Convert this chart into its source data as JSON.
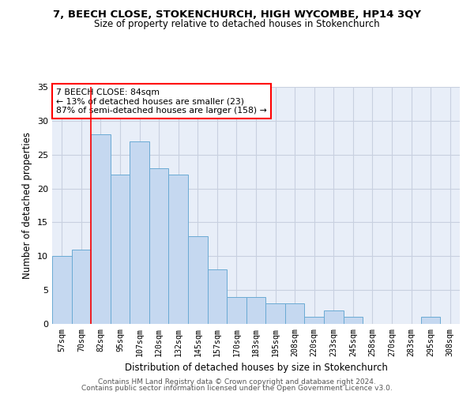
{
  "title": "7, BEECH CLOSE, STOKENCHURCH, HIGH WYCOMBE, HP14 3QY",
  "subtitle": "Size of property relative to detached houses in Stokenchurch",
  "xlabel": "Distribution of detached houses by size in Stokenchurch",
  "ylabel": "Number of detached properties",
  "bar_labels": [
    "57sqm",
    "70sqm",
    "82sqm",
    "95sqm",
    "107sqm",
    "120sqm",
    "132sqm",
    "145sqm",
    "157sqm",
    "170sqm",
    "183sqm",
    "195sqm",
    "208sqm",
    "220sqm",
    "233sqm",
    "245sqm",
    "258sqm",
    "270sqm",
    "283sqm",
    "295sqm",
    "308sqm"
  ],
  "bar_values": [
    10,
    11,
    28,
    22,
    27,
    23,
    22,
    13,
    8,
    4,
    4,
    3,
    3,
    1,
    2,
    1,
    0,
    0,
    0,
    1,
    0
  ],
  "bar_color": "#c5d8f0",
  "bar_edge_color": "#6aaad4",
  "annotation_text": "7 BEECH CLOSE: 84sqm\n← 13% of detached houses are smaller (23)\n87% of semi-detached houses are larger (158) →",
  "annotation_box_color": "white",
  "annotation_box_edge": "red",
  "vline_color": "red",
  "vline_index": 2,
  "ylim": [
    0,
    35
  ],
  "yticks": [
    0,
    5,
    10,
    15,
    20,
    25,
    30,
    35
  ],
  "bg_color": "#e8eef8",
  "grid_color": "#c8d0e0",
  "footer_line1": "Contains HM Land Registry data © Crown copyright and database right 2024.",
  "footer_line2": "Contains public sector information licensed under the Open Government Licence v3.0."
}
